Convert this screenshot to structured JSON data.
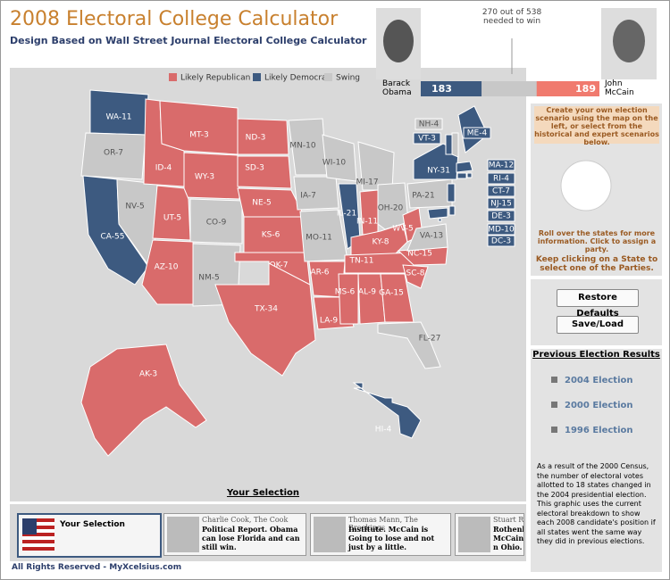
{
  "header": {
    "title": "2008 Electoral College Calculator",
    "subtitle": "Design Based on Wall Street Journal Electoral College Calculator"
  },
  "electoral": {
    "needed_label": "270 out of 538",
    "needed_note": "needed to win",
    "total": 538,
    "democrat": 183,
    "republican": 189,
    "democrat_name": "Barack Obama",
    "republican_name": "John McCain",
    "democrat_color": "#3d5a80",
    "republican_color": "#f07a6e",
    "swing_color": "#c8c8c8"
  },
  "legend": [
    {
      "name": "Likely Republican",
      "color": "#d96b6b"
    },
    {
      "name": "Likely Democrat",
      "color": "#3d5a80"
    },
    {
      "name": "Swing",
      "color": "#c8c8c8"
    }
  ],
  "states": [
    {
      "label": "WA-11",
      "party": 1
    },
    {
      "label": "OR-7",
      "party": 2
    },
    {
      "label": "CA-55",
      "party": 1
    },
    {
      "label": "NV-5",
      "party": 2
    },
    {
      "label": "ID-4",
      "party": 0
    },
    {
      "label": "MT-3",
      "party": 0
    },
    {
      "label": "WY-3",
      "party": 0
    },
    {
      "label": "UT-5",
      "party": 0
    },
    {
      "label": "CO-9",
      "party": 2
    },
    {
      "label": "AZ-10",
      "party": 0
    },
    {
      "label": "NM-5",
      "party": 2
    },
    {
      "label": "ND-3",
      "party": 0
    },
    {
      "label": "SD-3",
      "party": 0
    },
    {
      "label": "NE-5",
      "party": 0
    },
    {
      "label": "KS-6",
      "party": 0
    },
    {
      "label": "OK-7",
      "party": 0
    },
    {
      "label": "TX-34",
      "party": 0
    },
    {
      "label": "MN-10",
      "party": 2
    },
    {
      "label": "IA-7",
      "party": 2
    },
    {
      "label": "MO-11",
      "party": 2
    },
    {
      "label": "AR-6",
      "party": 0
    },
    {
      "label": "LA-9",
      "party": 0
    },
    {
      "label": "WI-10",
      "party": 2
    },
    {
      "label": "IL-21",
      "party": 1
    },
    {
      "label": "MI-17",
      "party": 2
    },
    {
      "label": "IN-11",
      "party": 0
    },
    {
      "label": "OH-20",
      "party": 2
    },
    {
      "label": "KY-8",
      "party": 0
    },
    {
      "label": "TN-11",
      "party": 0
    },
    {
      "label": "MS-6",
      "party": 0
    },
    {
      "label": "AL-9",
      "party": 0
    },
    {
      "label": "GA-15",
      "party": 0
    },
    {
      "label": "FL-27",
      "party": 2
    },
    {
      "label": "SC-8",
      "party": 0
    },
    {
      "label": "NC-15",
      "party": 0
    },
    {
      "label": "WV-5",
      "party": 0
    },
    {
      "label": "VA-13",
      "party": 2
    },
    {
      "label": "PA-21",
      "party": 2
    },
    {
      "label": "NY-31",
      "party": 1
    },
    {
      "label": "ME-4",
      "party": 1
    },
    {
      "label": "NH-4",
      "party": 2
    },
    {
      "label": "VT-3",
      "party": 1
    },
    {
      "label": "MA-12",
      "party": 1
    },
    {
      "label": "RI-4",
      "party": 1
    },
    {
      "label": "CT-7",
      "party": 1
    },
    {
      "label": "NJ-15",
      "party": 1
    },
    {
      "label": "DE-3",
      "party": 1
    },
    {
      "label": "MD-10",
      "party": 1
    },
    {
      "label": "DC-3",
      "party": 1
    },
    {
      "label": "AK-3",
      "party": 0
    },
    {
      "label": "HI-4",
      "party": 1
    }
  ],
  "panel": {
    "intro": "Create your own election scenario using the map on the left, or select from the historical and expert scenarios below.",
    "rollover": "Roll over the states for more information. Click to assign a party.",
    "keep": "Keep clicking on a State to select one of the Parties.",
    "buttons": [
      "Restore Defaults",
      "Save/Load"
    ],
    "previous_title": "Previous Election Results",
    "elections": [
      "2004 Election",
      "2000 Election",
      "1996 Election"
    ],
    "note": "As a result of the 2000 Census, the number of electoral votes allotted to 18 states changed in the 2004 presidential election. This graphic uses the current electoral breakdown to show each 2008 candidate's position if all states went the same way they did in previous elections."
  },
  "selection_title": "Your Selection",
  "scenarios": [
    {
      "title": "Your Selection",
      "text": ""
    },
    {
      "title": "Charlie Cook, The Cook",
      "text": "Political Report. Obama can lose Florida and can still win."
    },
    {
      "title": "Thomas Mann, The Brookings",
      "text": "Institute. McCain is Going to lose and not just by a little."
    },
    {
      "title": "Stuart R",
      "text": "Rothenb McCain n Ohio."
    }
  ],
  "footer": "All Rights Reserved - MyXcelsius.com"
}
